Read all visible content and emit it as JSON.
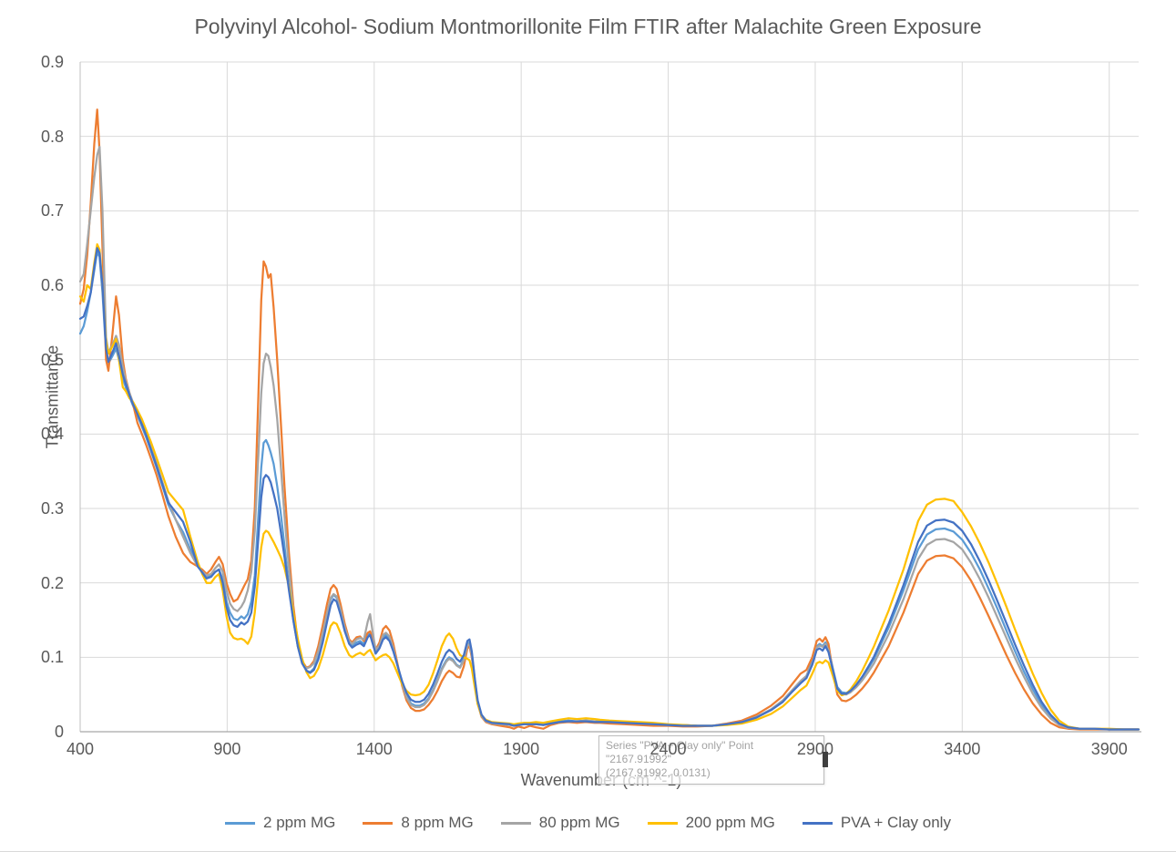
{
  "chart": {
    "title": "Polyvinyl Alcohol- Sodium Montmorillonite Film FTIR after Malachite Green Exposure",
    "y_axis_title": "Transmittance",
    "x_axis_title": "Wavenumber (cm ^-1)",
    "y_tick_labels": [
      "0",
      "0.1",
      "0.2",
      "0.3",
      "0.4",
      "0.5",
      "0.6",
      "0.7",
      "0.8",
      "0.9"
    ],
    "x_tick_labels": [
      "400",
      "900",
      "1400",
      "1900",
      "2400",
      "2900",
      "3400",
      "3900"
    ],
    "text_color": "#595959",
    "gridline_color": "#d9d9d9",
    "axis_line_color": "#bfbfbf"
  },
  "tooltip": {
    "line1": "Series \"PVA + Clay only\" Point \"2167.91992\"",
    "line2": "(2167.91992, 0.0131)"
  },
  "chart_data": {
    "type": "line",
    "title": "Polyvinyl Alcohol- Sodium Montmorillonite Film FTIR after Malachite Green Exposure",
    "xlabel": "Wavenumber (cm ^-1)",
    "ylabel": "Transmittance",
    "xlim": [
      400,
      4000
    ],
    "ylim": [
      0,
      0.9
    ],
    "x_major_unit": 500,
    "y_major_unit": 0.1,
    "grid": true,
    "legend_position": "bottom",
    "highlighted_point": {
      "series": "PVA + Clay only",
      "x": 2167.91992,
      "y": 0.0131
    },
    "x": [
      400,
      412,
      424,
      436,
      448,
      458,
      466,
      476,
      488,
      496,
      510,
      522,
      532,
      545,
      555,
      568,
      580,
      595,
      610,
      625,
      640,
      660,
      680,
      700,
      725,
      750,
      775,
      800,
      815,
      830,
      845,
      860,
      872,
      885,
      898,
      910,
      922,
      935,
      948,
      958,
      970,
      982,
      994,
      1006,
      1016,
      1024,
      1032,
      1040,
      1048,
      1058,
      1070,
      1082,
      1095,
      1110,
      1125,
      1140,
      1155,
      1170,
      1182,
      1195,
      1210,
      1225,
      1240,
      1252,
      1262,
      1272,
      1285,
      1300,
      1315,
      1325,
      1340,
      1352,
      1365,
      1378,
      1386,
      1395,
      1405,
      1418,
      1430,
      1440,
      1452,
      1465,
      1480,
      1495,
      1510,
      1525,
      1540,
      1555,
      1570,
      1585,
      1600,
      1615,
      1630,
      1645,
      1655,
      1668,
      1680,
      1692,
      1705,
      1717,
      1724,
      1732,
      1742,
      1752,
      1765,
      1780,
      1800,
      1830,
      1860,
      1875,
      1890,
      1910,
      1930,
      1950,
      1975,
      2000,
      2030,
      2060,
      2090,
      2120,
      2150,
      2168,
      2200,
      2250,
      2300,
      2350,
      2400,
      2450,
      2500,
      2550,
      2600,
      2650,
      2700,
      2750,
      2790,
      2820,
      2850,
      2870,
      2890,
      2905,
      2915,
      2925,
      2935,
      2945,
      2960,
      2975,
      2990,
      3005,
      3020,
      3040,
      3060,
      3080,
      3100,
      3150,
      3200,
      3250,
      3280,
      3310,
      3340,
      3370,
      3400,
      3430,
      3460,
      3490,
      3520,
      3550,
      3580,
      3610,
      3640,
      3670,
      3700,
      3730,
      3760,
      3800,
      3850,
      3900,
      3950,
      4000
    ],
    "series": [
      {
        "name": "2 ppm MG",
        "color": "#5B9BD5",
        "values": [
          0.535,
          0.545,
          0.565,
          0.59,
          0.62,
          0.645,
          0.638,
          0.59,
          0.51,
          0.495,
          0.505,
          0.515,
          0.5,
          0.475,
          0.463,
          0.45,
          0.438,
          0.425,
          0.41,
          0.395,
          0.378,
          0.355,
          0.33,
          0.305,
          0.285,
          0.268,
          0.245,
          0.222,
          0.215,
          0.208,
          0.21,
          0.215,
          0.218,
          0.205,
          0.175,
          0.16,
          0.152,
          0.15,
          0.155,
          0.152,
          0.158,
          0.175,
          0.21,
          0.29,
          0.355,
          0.388,
          0.392,
          0.385,
          0.375,
          0.36,
          0.33,
          0.295,
          0.25,
          0.195,
          0.15,
          0.115,
          0.092,
          0.082,
          0.08,
          0.085,
          0.1,
          0.125,
          0.155,
          0.178,
          0.184,
          0.18,
          0.162,
          0.138,
          0.12,
          0.116,
          0.12,
          0.122,
          0.118,
          0.13,
          0.134,
          0.122,
          0.108,
          0.115,
          0.127,
          0.13,
          0.125,
          0.11,
          0.088,
          0.065,
          0.048,
          0.038,
          0.035,
          0.035,
          0.038,
          0.045,
          0.056,
          0.07,
          0.085,
          0.096,
          0.1,
          0.097,
          0.09,
          0.087,
          0.098,
          0.118,
          0.12,
          0.105,
          0.07,
          0.04,
          0.022,
          0.015,
          0.012,
          0.011,
          0.01,
          0.009,
          0.01,
          0.011,
          0.01,
          0.011,
          0.01,
          0.012,
          0.014,
          0.015,
          0.014,
          0.015,
          0.014,
          0.014,
          0.013,
          0.012,
          0.011,
          0.01,
          0.009,
          0.009,
          0.008,
          0.008,
          0.01,
          0.013,
          0.02,
          0.03,
          0.042,
          0.055,
          0.068,
          0.075,
          0.095,
          0.115,
          0.118,
          0.115,
          0.12,
          0.112,
          0.085,
          0.06,
          0.053,
          0.052,
          0.055,
          0.063,
          0.073,
          0.085,
          0.098,
          0.14,
          0.19,
          0.245,
          0.265,
          0.272,
          0.273,
          0.269,
          0.258,
          0.24,
          0.218,
          0.192,
          0.165,
          0.136,
          0.108,
          0.081,
          0.057,
          0.036,
          0.02,
          0.01,
          0.006,
          0.004,
          0.004,
          0.003,
          0.003,
          0.003
        ]
      },
      {
        "name": "8 ppm MG",
        "color": "#ED7D31",
        "values": [
          0.575,
          0.595,
          0.64,
          0.71,
          0.79,
          0.836,
          0.78,
          0.65,
          0.5,
          0.485,
          0.535,
          0.585,
          0.56,
          0.5,
          0.475,
          0.455,
          0.44,
          0.415,
          0.4,
          0.385,
          0.368,
          0.345,
          0.318,
          0.29,
          0.262,
          0.24,
          0.228,
          0.222,
          0.218,
          0.212,
          0.218,
          0.228,
          0.235,
          0.225,
          0.2,
          0.185,
          0.175,
          0.178,
          0.188,
          0.196,
          0.205,
          0.23,
          0.3,
          0.45,
          0.58,
          0.632,
          0.625,
          0.61,
          0.615,
          0.57,
          0.5,
          0.42,
          0.33,
          0.24,
          0.17,
          0.12,
          0.095,
          0.086,
          0.088,
          0.095,
          0.115,
          0.143,
          0.172,
          0.192,
          0.197,
          0.192,
          0.172,
          0.145,
          0.124,
          0.12,
          0.127,
          0.128,
          0.122,
          0.133,
          0.135,
          0.125,
          0.11,
          0.12,
          0.138,
          0.142,
          0.136,
          0.118,
          0.09,
          0.062,
          0.042,
          0.032,
          0.028,
          0.028,
          0.03,
          0.036,
          0.044,
          0.055,
          0.068,
          0.078,
          0.082,
          0.079,
          0.074,
          0.073,
          0.088,
          0.112,
          0.115,
          0.1,
          0.068,
          0.038,
          0.02,
          0.013,
          0.01,
          0.008,
          0.006,
          0.004,
          0.007,
          0.005,
          0.008,
          0.006,
          0.004,
          0.009,
          0.012,
          0.013,
          0.012,
          0.013,
          0.012,
          0.012,
          0.011,
          0.01,
          0.009,
          0.008,
          0.008,
          0.007,
          0.007,
          0.008,
          0.011,
          0.015,
          0.023,
          0.035,
          0.048,
          0.063,
          0.078,
          0.083,
          0.1,
          0.122,
          0.125,
          0.121,
          0.127,
          0.118,
          0.08,
          0.05,
          0.042,
          0.041,
          0.044,
          0.05,
          0.058,
          0.068,
          0.08,
          0.115,
          0.16,
          0.212,
          0.23,
          0.236,
          0.237,
          0.233,
          0.221,
          0.203,
          0.18,
          0.155,
          0.129,
          0.103,
          0.079,
          0.057,
          0.038,
          0.023,
          0.012,
          0.006,
          0.004,
          0.003,
          0.003,
          0.003,
          0.003,
          0.003
        ]
      },
      {
        "name": "80 ppm MG",
        "color": "#A5A5A5",
        "values": [
          0.605,
          0.615,
          0.655,
          0.7,
          0.745,
          0.775,
          0.786,
          0.7,
          0.53,
          0.51,
          0.52,
          0.532,
          0.52,
          0.49,
          0.472,
          0.455,
          0.442,
          0.428,
          0.415,
          0.4,
          0.383,
          0.36,
          0.335,
          0.31,
          0.285,
          0.262,
          0.24,
          0.222,
          0.215,
          0.21,
          0.212,
          0.22,
          0.225,
          0.215,
          0.19,
          0.172,
          0.165,
          0.162,
          0.168,
          0.175,
          0.19,
          0.215,
          0.27,
          0.37,
          0.455,
          0.495,
          0.508,
          0.505,
          0.49,
          0.465,
          0.42,
          0.36,
          0.29,
          0.22,
          0.16,
          0.115,
          0.092,
          0.085,
          0.087,
          0.092,
          0.108,
          0.133,
          0.16,
          0.18,
          0.185,
          0.182,
          0.165,
          0.14,
          0.122,
          0.118,
          0.124,
          0.126,
          0.124,
          0.148,
          0.158,
          0.133,
          0.11,
          0.116,
          0.13,
          0.133,
          0.128,
          0.112,
          0.088,
          0.064,
          0.046,
          0.036,
          0.033,
          0.033,
          0.036,
          0.043,
          0.054,
          0.068,
          0.083,
          0.094,
          0.098,
          0.095,
          0.089,
          0.086,
          0.096,
          0.116,
          0.118,
          0.103,
          0.068,
          0.038,
          0.021,
          0.014,
          0.011,
          0.01,
          0.009,
          0.008,
          0.009,
          0.01,
          0.01,
          0.01,
          0.009,
          0.011,
          0.013,
          0.014,
          0.014,
          0.015,
          0.014,
          0.014,
          0.013,
          0.012,
          0.011,
          0.01,
          0.009,
          0.009,
          0.008,
          0.008,
          0.01,
          0.013,
          0.02,
          0.03,
          0.042,
          0.055,
          0.068,
          0.075,
          0.092,
          0.113,
          0.116,
          0.114,
          0.118,
          0.11,
          0.083,
          0.058,
          0.051,
          0.05,
          0.053,
          0.06,
          0.069,
          0.08,
          0.092,
          0.131,
          0.178,
          0.232,
          0.251,
          0.258,
          0.259,
          0.255,
          0.245,
          0.227,
          0.205,
          0.18,
          0.153,
          0.126,
          0.099,
          0.074,
          0.051,
          0.032,
          0.018,
          0.009,
          0.005,
          0.004,
          0.004,
          0.003,
          0.003,
          0.003
        ]
      },
      {
        "name": "200 ppm MG",
        "color": "#FFC000",
        "values": [
          0.585,
          0.578,
          0.6,
          0.595,
          0.63,
          0.655,
          0.648,
          0.6,
          0.525,
          0.508,
          0.518,
          0.528,
          0.5,
          0.463,
          0.458,
          0.448,
          0.443,
          0.432,
          0.42,
          0.405,
          0.39,
          0.368,
          0.345,
          0.322,
          0.31,
          0.298,
          0.262,
          0.228,
          0.212,
          0.2,
          0.2,
          0.208,
          0.212,
          0.19,
          0.155,
          0.133,
          0.126,
          0.124,
          0.125,
          0.123,
          0.118,
          0.128,
          0.16,
          0.21,
          0.248,
          0.266,
          0.27,
          0.268,
          0.262,
          0.255,
          0.245,
          0.235,
          0.22,
          0.195,
          0.16,
          0.125,
          0.098,
          0.08,
          0.072,
          0.075,
          0.085,
          0.103,
          0.125,
          0.142,
          0.147,
          0.145,
          0.133,
          0.115,
          0.103,
          0.1,
          0.104,
          0.106,
          0.103,
          0.108,
          0.11,
          0.103,
          0.096,
          0.1,
          0.103,
          0.104,
          0.1,
          0.092,
          0.078,
          0.064,
          0.055,
          0.05,
          0.049,
          0.05,
          0.054,
          0.063,
          0.078,
          0.096,
          0.115,
          0.128,
          0.132,
          0.125,
          0.112,
          0.103,
          0.1,
          0.098,
          0.096,
          0.085,
          0.06,
          0.037,
          0.022,
          0.016,
          0.013,
          0.012,
          0.011,
          0.01,
          0.011,
          0.012,
          0.012,
          0.013,
          0.012,
          0.014,
          0.016,
          0.018,
          0.017,
          0.018,
          0.017,
          0.016,
          0.015,
          0.014,
          0.013,
          0.012,
          0.01,
          0.009,
          0.008,
          0.008,
          0.009,
          0.011,
          0.016,
          0.024,
          0.034,
          0.045,
          0.056,
          0.062,
          0.078,
          0.092,
          0.094,
          0.092,
          0.096,
          0.093,
          0.075,
          0.055,
          0.049,
          0.051,
          0.057,
          0.068,
          0.082,
          0.098,
          0.115,
          0.163,
          0.218,
          0.283,
          0.305,
          0.312,
          0.313,
          0.31,
          0.295,
          0.276,
          0.253,
          0.227,
          0.198,
          0.168,
          0.137,
          0.107,
          0.078,
          0.052,
          0.03,
          0.015,
          0.007,
          0.004,
          0.004,
          0.004,
          0.003,
          0.003
        ]
      },
      {
        "name": "PVA + Clay only",
        "color": "#4472C4",
        "values": [
          0.555,
          0.558,
          0.572,
          0.59,
          0.625,
          0.65,
          0.643,
          0.6,
          0.515,
          0.497,
          0.51,
          0.522,
          0.505,
          0.48,
          0.468,
          0.452,
          0.44,
          0.427,
          0.413,
          0.398,
          0.38,
          0.357,
          0.332,
          0.308,
          0.295,
          0.282,
          0.255,
          0.222,
          0.214,
          0.206,
          0.208,
          0.215,
          0.218,
          0.2,
          0.168,
          0.15,
          0.143,
          0.141,
          0.147,
          0.144,
          0.148,
          0.16,
          0.195,
          0.26,
          0.315,
          0.34,
          0.345,
          0.342,
          0.335,
          0.32,
          0.3,
          0.27,
          0.235,
          0.19,
          0.15,
          0.115,
          0.092,
          0.082,
          0.079,
          0.083,
          0.097,
          0.12,
          0.148,
          0.17,
          0.178,
          0.175,
          0.158,
          0.135,
          0.118,
          0.113,
          0.117,
          0.119,
          0.115,
          0.127,
          0.13,
          0.118,
          0.105,
          0.112,
          0.124,
          0.127,
          0.122,
          0.108,
          0.088,
          0.068,
          0.052,
          0.043,
          0.04,
          0.04,
          0.043,
          0.051,
          0.063,
          0.078,
          0.094,
          0.106,
          0.11,
          0.106,
          0.098,
          0.094,
          0.103,
          0.122,
          0.124,
          0.108,
          0.072,
          0.042,
          0.023,
          0.015,
          0.012,
          0.011,
          0.01,
          0.008,
          0.009,
          0.01,
          0.01,
          0.01,
          0.009,
          0.011,
          0.013,
          0.014,
          0.014,
          0.014,
          0.013,
          0.0131,
          0.013,
          0.012,
          0.011,
          0.01,
          0.009,
          0.008,
          0.008,
          0.008,
          0.01,
          0.013,
          0.019,
          0.029,
          0.04,
          0.053,
          0.065,
          0.072,
          0.09,
          0.11,
          0.112,
          0.109,
          0.115,
          0.107,
          0.083,
          0.058,
          0.051,
          0.051,
          0.055,
          0.063,
          0.074,
          0.087,
          0.101,
          0.145,
          0.197,
          0.255,
          0.277,
          0.284,
          0.285,
          0.281,
          0.27,
          0.252,
          0.229,
          0.203,
          0.175,
          0.146,
          0.117,
          0.089,
          0.063,
          0.04,
          0.023,
          0.011,
          0.006,
          0.004,
          0.004,
          0.003,
          0.003,
          0.003
        ]
      }
    ]
  }
}
